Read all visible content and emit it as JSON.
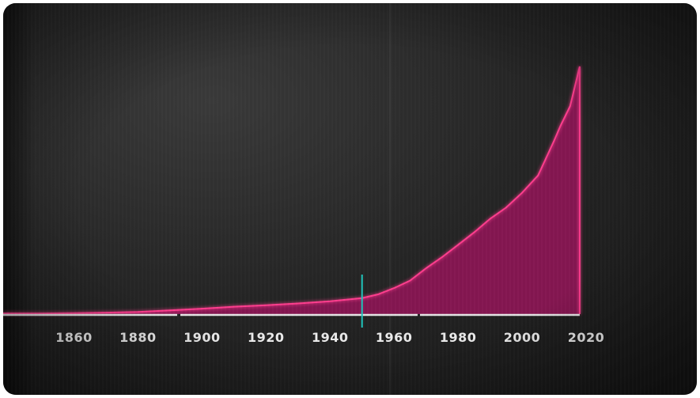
{
  "chart_data": {
    "type": "area",
    "title": "",
    "xlabel": "",
    "ylabel": "",
    "x": [
      1850,
      1860,
      1870,
      1880,
      1890,
      1900,
      1910,
      1920,
      1930,
      1940,
      1950,
      1955,
      1960,
      1965,
      1970,
      1975,
      1980,
      1985,
      1990,
      1995,
      2000,
      2005,
      2010,
      2012,
      2015,
      2018
    ],
    "y": [
      0.3,
      0.4,
      0.6,
      0.9,
      1.5,
      2.2,
      3.0,
      3.6,
      4.3,
      5.2,
      6.5,
      8.0,
      10.5,
      13.5,
      18.5,
      23.0,
      28.0,
      33.0,
      38.5,
      43.0,
      49.0,
      56.0,
      70.0,
      76.0,
      84.0,
      100.0
    ],
    "xlim": [
      1850,
      2020
    ],
    "ylim": [
      0,
      100
    ],
    "x_ticks": [
      "1860",
      "1880",
      "1900",
      "1920",
      "1940",
      "1960",
      "1980",
      "2000",
      "2020"
    ],
    "marker_year": 1950,
    "grid": false,
    "colors": {
      "fill": "#8e1656",
      "outline": "#ff3d8e",
      "marker": "#21c9c0",
      "baseline": "#e6e6e6"
    }
  }
}
